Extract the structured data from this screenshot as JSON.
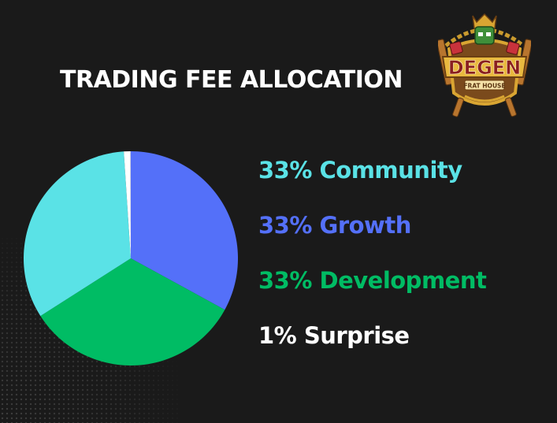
{
  "title": "TRADING FEE ALLOCATION",
  "logo": {
    "text_main": "DEGEN",
    "text_sub": "FRAT HOUSE",
    "colors": {
      "gold": "#d9a532",
      "brown": "#7a4a1c",
      "red": "#c8323c",
      "green": "#3f8f3a"
    }
  },
  "chart_data": {
    "type": "pie",
    "slices": [
      {
        "label": "33% Growth",
        "value": 33,
        "color": "#5470f9"
      },
      {
        "label": "33% Development",
        "value": 33,
        "color": "#00bc64"
      },
      {
        "label": "33% Community",
        "value": 33,
        "color": "#5ae2e6"
      },
      {
        "label": "1% Surprise",
        "value": 1,
        "color": "#ffffff"
      }
    ],
    "legend": [
      {
        "label": "33% Community",
        "color": "#5ae2e6"
      },
      {
        "label": "33% Growth",
        "color": "#5470f9"
      },
      {
        "label": "33% Development",
        "color": "#00bc64"
      },
      {
        "label": "1% Surprise",
        "color": "#ffffff"
      }
    ],
    "legend_placement": "right"
  }
}
